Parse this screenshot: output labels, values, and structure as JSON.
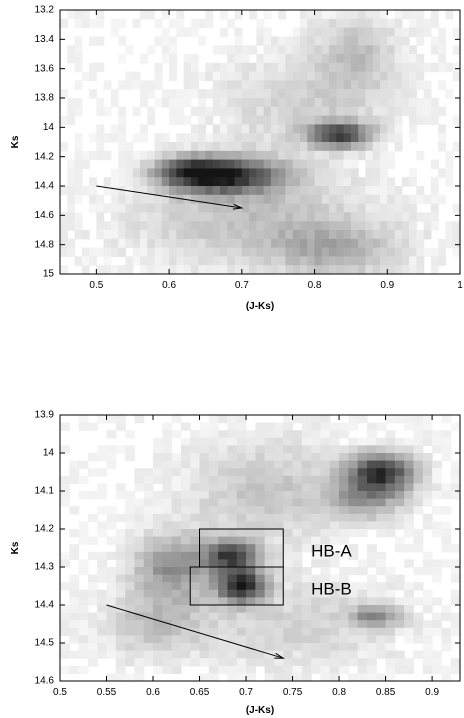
{
  "chart_data": [
    {
      "type": "heatmap",
      "xlabel": "(J-Ks)",
      "ylabel": "Ks",
      "xlim": [
        0.45,
        1.0
      ],
      "ylim": [
        13.2,
        15.0
      ],
      "y_inverted": true,
      "x_ticks": [
        0.5,
        0.6,
        0.7,
        0.8,
        0.9,
        1
      ],
      "x_tick_labels": [
        "0.5",
        "0.6",
        "0.7",
        "0.8",
        "0.9",
        "1"
      ],
      "y_ticks": [
        13.2,
        13.4,
        13.6,
        13.8,
        14.0,
        14.2,
        14.4,
        14.6,
        14.8,
        15.0
      ],
      "y_tick_labels": [
        "13.2",
        "13.4",
        "13.6",
        "13.8",
        "14",
        "14.2",
        "14.4",
        "14.6",
        "14.8",
        "15"
      ],
      "density_peaks": [
        {
          "x": 0.68,
          "y": 14.33,
          "sx": 0.055,
          "sy": 0.09,
          "a": 0.75
        },
        {
          "x": 0.63,
          "y": 14.3,
          "sx": 0.035,
          "sy": 0.07,
          "a": 0.45
        },
        {
          "x": 0.835,
          "y": 14.05,
          "sx": 0.03,
          "sy": 0.06,
          "a": 0.7
        },
        {
          "x": 0.86,
          "y": 13.5,
          "sx": 0.04,
          "sy": 0.2,
          "a": 0.2
        },
        {
          "x": 0.78,
          "y": 13.85,
          "sx": 0.08,
          "sy": 0.25,
          "a": 0.15
        },
        {
          "x": 0.72,
          "y": 14.65,
          "sx": 0.12,
          "sy": 0.2,
          "a": 0.22
        },
        {
          "x": 0.83,
          "y": 14.85,
          "sx": 0.06,
          "sy": 0.12,
          "a": 0.25
        }
      ],
      "grid_bins": [
        55,
        30
      ],
      "arrow": {
        "from": [
          0.5,
          14.4
        ],
        "to": [
          0.7,
          14.55
        ]
      }
    },
    {
      "type": "heatmap",
      "xlabel": "(J-Ks)",
      "ylabel": "Ks",
      "xlim": [
        0.5,
        0.93
      ],
      "ylim": [
        13.9,
        14.6
      ],
      "y_inverted": true,
      "x_ticks": [
        0.5,
        0.55,
        0.6,
        0.65,
        0.7,
        0.75,
        0.8,
        0.85,
        0.9
      ],
      "x_tick_labels": [
        "0.5",
        "0.55",
        "0.6",
        "0.65",
        "0.7",
        "0.75",
        "0.8",
        "0.85",
        "0.9"
      ],
      "y_ticks": [
        13.9,
        14.0,
        14.1,
        14.2,
        14.3,
        14.4,
        14.5,
        14.6
      ],
      "y_tick_labels": [
        "13.9",
        "14",
        "14.1",
        "14.2",
        "14.3",
        "14.4",
        "14.5",
        "14.6"
      ],
      "density_peaks": [
        {
          "x": 0.695,
          "y": 14.35,
          "sx": 0.018,
          "sy": 0.03,
          "a": 0.8
        },
        {
          "x": 0.685,
          "y": 14.27,
          "sx": 0.02,
          "sy": 0.03,
          "a": 0.7
        },
        {
          "x": 0.62,
          "y": 14.3,
          "sx": 0.03,
          "sy": 0.06,
          "a": 0.4
        },
        {
          "x": 0.845,
          "y": 14.05,
          "sx": 0.025,
          "sy": 0.035,
          "a": 0.75
        },
        {
          "x": 0.83,
          "y": 14.12,
          "sx": 0.03,
          "sy": 0.04,
          "a": 0.35
        },
        {
          "x": 0.84,
          "y": 14.43,
          "sx": 0.02,
          "sy": 0.02,
          "a": 0.4
        },
        {
          "x": 0.72,
          "y": 14.1,
          "sx": 0.06,
          "sy": 0.1,
          "a": 0.2
        },
        {
          "x": 0.75,
          "y": 14.45,
          "sx": 0.08,
          "sy": 0.08,
          "a": 0.15
        },
        {
          "x": 0.6,
          "y": 14.45,
          "sx": 0.04,
          "sy": 0.06,
          "a": 0.2
        }
      ],
      "grid_bins": [
        43,
        35
      ],
      "arrow": {
        "from": [
          0.55,
          14.4
        ],
        "to": [
          0.74,
          14.54
        ]
      },
      "regions": [
        {
          "label": "HB-A",
          "x0": 0.65,
          "x1": 0.74,
          "y0": 14.2,
          "y1": 14.3,
          "label_x": 0.77,
          "label_y": 14.26
        },
        {
          "label": "HB-B",
          "x0": 0.64,
          "x1": 0.74,
          "y0": 14.3,
          "y1": 14.4,
          "label_x": 0.77,
          "label_y": 14.36
        }
      ]
    }
  ]
}
